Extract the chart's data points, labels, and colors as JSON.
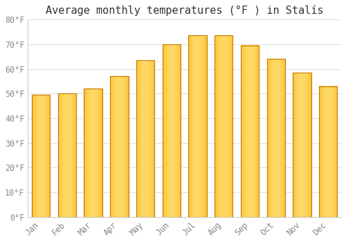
{
  "title": "Average monthly temperatures (°F ) in Stalís",
  "months": [
    "Jan",
    "Feb",
    "Mar",
    "Apr",
    "May",
    "Jun",
    "Jul",
    "Aug",
    "Sep",
    "Oct",
    "Nov",
    "Dec"
  ],
  "values": [
    49.5,
    50.0,
    52.0,
    57.0,
    63.5,
    70.0,
    73.5,
    73.5,
    69.5,
    64.0,
    58.5,
    53.0
  ],
  "bar_color_dark": "#F5A800",
  "bar_color_light": "#FFD966",
  "bar_border_color": "#C87800",
  "ylim": [
    0,
    80
  ],
  "yticks": [
    0,
    10,
    20,
    30,
    40,
    50,
    60,
    70,
    80
  ],
  "ytick_labels": [
    "0°F",
    "10°F",
    "20°F",
    "30°F",
    "40°F",
    "50°F",
    "60°F",
    "70°F",
    "80°F"
  ],
  "background_color": "#ffffff",
  "grid_color": "#e0e0e0",
  "title_fontsize": 11,
  "tick_fontsize": 8.5,
  "bar_width": 0.7
}
